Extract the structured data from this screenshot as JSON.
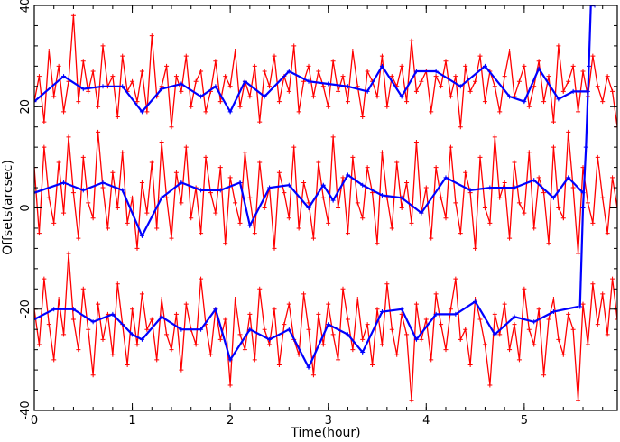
{
  "chart_data": {
    "type": "line",
    "title": "",
    "xlabel": "Time(hour)",
    "ylabel": "Offsets(arcsec)",
    "xlim": [
      0,
      5.95
    ],
    "ylim": [
      -40,
      40
    ],
    "x_ticks": [
      0,
      1,
      2,
      3,
      4,
      5
    ],
    "y_ticks": [
      -40,
      -20,
      0,
      20,
      40
    ],
    "grid": false,
    "legend": "none",
    "colors": {
      "raw": "#ff0000",
      "smoothed": "#0000ff",
      "axis": "#000000"
    },
    "noisy_series_note_free": true,
    "series": [
      {
        "color": "#ff0000",
        "style": "line-with-plus-markers",
        "x": [
          0.0,
          0.05,
          0.1,
          0.15,
          0.2,
          0.25,
          0.3,
          0.35,
          0.4,
          0.45,
          0.5,
          0.55,
          0.6,
          0.65,
          0.7,
          0.75,
          0.8,
          0.85,
          0.9,
          0.95,
          1.0,
          1.05,
          1.1,
          1.15,
          1.2,
          1.25,
          1.3,
          1.35,
          1.4,
          1.45,
          1.5,
          1.55,
          1.6,
          1.65,
          1.7,
          1.75,
          1.8,
          1.85,
          1.9,
          1.95,
          2.0,
          2.05,
          2.1,
          2.15,
          2.2,
          2.25,
          2.3,
          2.35,
          2.4,
          2.45,
          2.5,
          2.55,
          2.6,
          2.65,
          2.7,
          2.75,
          2.8,
          2.85,
          2.9,
          2.95,
          3.0,
          3.05,
          3.1,
          3.15,
          3.2,
          3.25,
          3.3,
          3.35,
          3.4,
          3.45,
          3.5,
          3.55,
          3.6,
          3.65,
          3.7,
          3.75,
          3.8,
          3.85,
          3.9,
          3.95,
          4.0,
          4.05,
          4.1,
          4.15,
          4.2,
          4.25,
          4.3,
          4.35,
          4.4,
          4.45,
          4.5,
          4.55,
          4.6,
          4.65,
          4.7,
          4.75,
          4.8,
          4.85,
          4.9,
          4.95,
          5.0,
          5.05,
          5.1,
          5.15,
          5.2,
          5.25,
          5.3,
          5.35,
          5.4,
          5.45,
          5.5,
          5.55,
          5.6,
          5.65,
          5.7,
          5.75,
          5.8,
          5.85,
          5.9,
          5.95
        ],
        "y": [
          21,
          26,
          17,
          31,
          22,
          28,
          19,
          25,
          38,
          21,
          29,
          23,
          27,
          20,
          32,
          24,
          26,
          18,
          30,
          23,
          25,
          21,
          27,
          19,
          34,
          22,
          24,
          28,
          16,
          26,
          23,
          30,
          20,
          25,
          27,
          19,
          23,
          29,
          21,
          26,
          24,
          31,
          20,
          25,
          22,
          28,
          17,
          27,
          24,
          30,
          21,
          26,
          23,
          32,
          19,
          25,
          28,
          22,
          27,
          24,
          20,
          29,
          23,
          26,
          21,
          31,
          24,
          18,
          27,
          25,
          22,
          30,
          20,
          26,
          24,
          28,
          21,
          33,
          23,
          25,
          27,
          19,
          26,
          24,
          29,
          22,
          26,
          16,
          28,
          23,
          25,
          30,
          21,
          27,
          24,
          19,
          26,
          31,
          22,
          25,
          28,
          20,
          24,
          29,
          21,
          26,
          17,
          32,
          23,
          25,
          28,
          19,
          27,
          22,
          30,
          24,
          21,
          26,
          23,
          16
        ]
      },
      {
        "color": "#ff0000",
        "style": "line-with-plus-markers",
        "x": [
          0.0,
          0.05,
          0.1,
          0.15,
          0.2,
          0.25,
          0.3,
          0.35,
          0.4,
          0.45,
          0.5,
          0.55,
          0.6,
          0.65,
          0.7,
          0.75,
          0.8,
          0.85,
          0.9,
          0.95,
          1.0,
          1.05,
          1.1,
          1.15,
          1.2,
          1.25,
          1.3,
          1.35,
          1.4,
          1.45,
          1.5,
          1.55,
          1.6,
          1.65,
          1.7,
          1.75,
          1.8,
          1.85,
          1.9,
          1.95,
          2.0,
          2.05,
          2.1,
          2.15,
          2.2,
          2.25,
          2.3,
          2.35,
          2.4,
          2.45,
          2.5,
          2.55,
          2.6,
          2.65,
          2.7,
          2.75,
          2.8,
          2.85,
          2.9,
          2.95,
          3.0,
          3.05,
          3.1,
          3.15,
          3.2,
          3.25,
          3.3,
          3.35,
          3.4,
          3.45,
          3.5,
          3.55,
          3.6,
          3.65,
          3.7,
          3.75,
          3.8,
          3.85,
          3.9,
          3.95,
          4.0,
          4.05,
          4.1,
          4.15,
          4.2,
          4.25,
          4.3,
          4.35,
          4.4,
          4.45,
          4.5,
          4.55,
          4.6,
          4.65,
          4.7,
          4.75,
          4.8,
          4.85,
          4.9,
          4.95,
          5.0,
          5.05,
          5.1,
          5.15,
          5.2,
          5.25,
          5.3,
          5.35,
          5.4,
          5.45,
          5.5,
          5.55,
          5.6,
          5.65,
          5.7,
          5.75,
          5.8,
          5.85,
          5.9,
          5.95
        ],
        "y": [
          8,
          -5,
          12,
          2,
          -3,
          9,
          -1,
          14,
          3,
          -6,
          10,
          1,
          -2,
          15,
          4,
          -4,
          7,
          0,
          11,
          -3,
          2,
          -8,
          5,
          -1,
          9,
          -4,
          13,
          2,
          -6,
          7,
          1,
          12,
          -2,
          4,
          -5,
          10,
          3,
          -1,
          8,
          -7,
          6,
          1,
          -3,
          11,
          2,
          -5,
          9,
          0,
          4,
          -8,
          7,
          3,
          -2,
          12,
          -4,
          5,
          1,
          -6,
          9,
          2,
          -3,
          14,
          0,
          6,
          -5,
          10,
          1,
          -2,
          8,
          3,
          -7,
          11,
          2,
          -4,
          9,
          0,
          5,
          -3,
          13,
          -1,
          4,
          -6,
          8,
          2,
          -2,
          12,
          1,
          -5,
          7,
          3,
          -8,
          10,
          0,
          -3,
          14,
          2,
          5,
          -6,
          9,
          1,
          -1,
          11,
          -4,
          6,
          3,
          -7,
          12,
          0,
          -2,
          15,
          4,
          -9,
          8,
          1,
          -3,
          10,
          2,
          -5,
          6,
          0
        ]
      },
      {
        "color": "#ff0000",
        "style": "line-with-plus-markers",
        "x": [
          0.0,
          0.05,
          0.1,
          0.15,
          0.2,
          0.25,
          0.3,
          0.35,
          0.4,
          0.45,
          0.5,
          0.55,
          0.6,
          0.65,
          0.7,
          0.75,
          0.8,
          0.85,
          0.9,
          0.95,
          1.0,
          1.05,
          1.1,
          1.15,
          1.2,
          1.25,
          1.3,
          1.35,
          1.4,
          1.45,
          1.5,
          1.55,
          1.6,
          1.65,
          1.7,
          1.75,
          1.8,
          1.85,
          1.9,
          1.95,
          2.0,
          2.05,
          2.1,
          2.15,
          2.2,
          2.25,
          2.3,
          2.35,
          2.4,
          2.45,
          2.5,
          2.55,
          2.6,
          2.65,
          2.7,
          2.75,
          2.8,
          2.85,
          2.9,
          2.95,
          3.0,
          3.05,
          3.1,
          3.15,
          3.2,
          3.25,
          3.3,
          3.35,
          3.4,
          3.45,
          3.5,
          3.55,
          3.6,
          3.65,
          3.7,
          3.75,
          3.8,
          3.85,
          3.9,
          3.95,
          4.0,
          4.05,
          4.1,
          4.15,
          4.2,
          4.25,
          4.3,
          4.35,
          4.4,
          4.45,
          4.5,
          4.55,
          4.6,
          4.65,
          4.7,
          4.75,
          4.8,
          4.85,
          4.9,
          4.95,
          5.0,
          5.05,
          5.1,
          5.15,
          5.2,
          5.25,
          5.3,
          5.35,
          5.4,
          5.45,
          5.5,
          5.55,
          5.6,
          5.65,
          5.7,
          5.75,
          5.8,
          5.85,
          5.9,
          5.95
        ],
        "y": [
          -20,
          -27,
          -14,
          -23,
          -30,
          -18,
          -25,
          -9,
          -22,
          -28,
          -16,
          -24,
          -33,
          -19,
          -26,
          -21,
          -29,
          -15,
          -23,
          -31,
          -20,
          -27,
          -17,
          -24,
          -22,
          -30,
          -18,
          -25,
          -28,
          -21,
          -32,
          -19,
          -24,
          -27,
          -14,
          -23,
          -29,
          -20,
          -26,
          -22,
          -35,
          -18,
          -25,
          -28,
          -21,
          -30,
          -16,
          -24,
          -27,
          -20,
          -31,
          -23,
          -19,
          -26,
          -29,
          -17,
          -24,
          -33,
          -21,
          -27,
          -19,
          -25,
          -30,
          -16,
          -22,
          -28,
          -18,
          -26,
          -23,
          -31,
          -20,
          -27,
          -15,
          -24,
          -29,
          -21,
          -25,
          -38,
          -19,
          -26,
          -22,
          -30,
          -17,
          -23,
          -28,
          -20,
          -14,
          -26,
          -24,
          -31,
          -18,
          -22,
          -27,
          -35,
          -21,
          -25,
          -19,
          -28,
          -23,
          -30,
          -16,
          -24,
          -27,
          -20,
          -33,
          -22,
          -18,
          -26,
          -29,
          -21,
          -24,
          -38,
          -19,
          -27,
          -15,
          -23,
          -17,
          -25,
          -14,
          -22
        ]
      },
      {
        "color": "#0000ff",
        "style": "line-with-plus-markers",
        "x": [
          0.0,
          0.3,
          0.5,
          0.7,
          0.9,
          1.1,
          1.3,
          1.5,
          1.7,
          1.85,
          2.0,
          2.15,
          2.35,
          2.6,
          2.8,
          3.0,
          3.2,
          3.4,
          3.55,
          3.75,
          3.9,
          4.1,
          4.35,
          4.6,
          4.85,
          5.0,
          5.15,
          5.35,
          5.5,
          5.65
        ],
        "y": [
          21,
          26,
          23.5,
          24,
          24,
          19,
          23.5,
          24.5,
          22,
          24,
          19,
          25,
          22,
          27,
          25,
          24.5,
          24,
          23,
          28,
          22,
          27,
          27,
          24,
          28,
          22,
          21,
          27.5,
          21.5,
          23,
          23
        ]
      },
      {
        "color": "#0000ff",
        "style": "line-with-plus-markers",
        "x": [
          0.0,
          0.3,
          0.5,
          0.7,
          0.9,
          1.1,
          1.3,
          1.5,
          1.7,
          1.9,
          2.1,
          2.2,
          2.4,
          2.6,
          2.8,
          2.95,
          3.05,
          3.2,
          3.35,
          3.55,
          3.75,
          3.95,
          4.2,
          4.45,
          4.65,
          4.9,
          5.1,
          5.3,
          5.45,
          5.6
        ],
        "y": [
          3,
          5,
          3.5,
          5,
          3.5,
          -5.5,
          2,
          5,
          3.5,
          3.5,
          5,
          -3.5,
          4,
          4.5,
          0,
          4.5,
          1.5,
          6.5,
          4.5,
          2.5,
          2,
          -1,
          6,
          3.5,
          4,
          4,
          5.5,
          2,
          6,
          3
        ]
      },
      {
        "color": "#0000ff",
        "style": "line-with-plus-markers",
        "x": [
          0.0,
          0.2,
          0.4,
          0.6,
          0.8,
          1.0,
          1.1,
          1.3,
          1.5,
          1.7,
          1.85,
          2.0,
          2.2,
          2.4,
          2.6,
          2.8,
          3.0,
          3.2,
          3.35,
          3.55,
          3.75,
          3.9,
          4.1,
          4.3,
          4.5,
          4.7,
          4.9,
          5.1,
          5.3,
          5.55
        ],
        "y": [
          -22,
          -20,
          -20,
          -22.5,
          -21,
          -25,
          -26,
          -21.5,
          -24,
          -24,
          -20,
          -30,
          -24,
          -26,
          -24,
          -31.5,
          -23,
          -25,
          -28.5,
          -20.5,
          -20,
          -26,
          -21,
          -21,
          -18.5,
          -25,
          -21.5,
          -22.5,
          -20.5,
          -19.5
        ]
      },
      {
        "color": "#0000ff",
        "style": "line-with-plus-markers",
        "x": [
          5.57,
          5.6,
          5.63,
          5.66,
          5.68,
          5.72
        ],
        "y": [
          -19.5,
          0,
          12,
          28,
          40,
          40
        ]
      }
    ]
  }
}
